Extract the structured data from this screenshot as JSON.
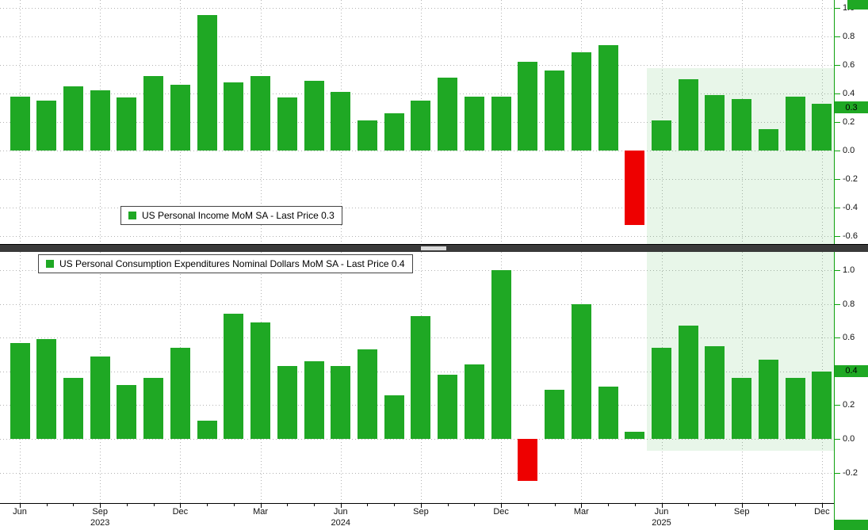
{
  "chart_data": {
    "type": "bar",
    "months": [
      "Jun-23",
      "Jul-23",
      "Aug-23",
      "Sep-23",
      "Oct-23",
      "Nov-23",
      "Dec-23",
      "Jan-24",
      "Feb-24",
      "Mar-24",
      "Apr-24",
      "May-24",
      "Jun-24",
      "Jul-24",
      "Aug-24",
      "Sep-24",
      "Oct-24",
      "Nov-24",
      "Dec-24",
      "Jan-25",
      "Feb-25",
      "Mar-25",
      "Apr-25",
      "May-25",
      "Jun-25",
      "Jul-25",
      "Aug-25",
      "Sep-25",
      "Oct-25",
      "Nov-25",
      "Dec-25"
    ],
    "x_axis": {
      "quarter_labels": [
        {
          "index": 0,
          "label": "Jun"
        },
        {
          "index": 3,
          "label": "Sep"
        },
        {
          "index": 6,
          "label": "Dec"
        },
        {
          "index": 9,
          "label": "Mar"
        },
        {
          "index": 12,
          "label": "Jun"
        },
        {
          "index": 15,
          "label": "Sep"
        },
        {
          "index": 18,
          "label": "Dec"
        },
        {
          "index": 21,
          "label": "Mar"
        },
        {
          "index": 24,
          "label": "Jun"
        },
        {
          "index": 27,
          "label": "Sep"
        },
        {
          "index": 30,
          "label": "Dec"
        }
      ],
      "year_labels": [
        {
          "index": 3,
          "label": "2023"
        },
        {
          "index": 12,
          "label": "2024"
        },
        {
          "index": 24,
          "label": "2025"
        }
      ]
    },
    "panels": [
      {
        "name": "us-personal-income-mom-sa",
        "legend_label": "US Personal Income MoM SA - Last Price 0.3",
        "last_price": "0.3",
        "ylim": [
          -0.66,
          1.06
        ],
        "yticks": [
          1.0,
          0.8,
          0.6,
          0.4,
          0.2,
          0.0,
          -0.2,
          -0.4,
          -0.6
        ],
        "grid": true,
        "legend_position": "bottom-left-area",
        "values": [
          0.38,
          0.35,
          0.45,
          0.42,
          0.37,
          0.52,
          0.46,
          0.95,
          0.48,
          0.52,
          0.37,
          0.49,
          0.41,
          0.21,
          0.26,
          0.35,
          0.51,
          0.38,
          0.38,
          0.62,
          0.56,
          0.69,
          0.74,
          -0.52,
          0.21,
          0.5,
          0.39,
          0.36,
          0.15,
          0.38,
          0.33
        ],
        "highlight": {
          "from_month": "Jun-25",
          "to_month": "Dec-25",
          "value_top": 0.58,
          "value_bottom": -0.67
        }
      },
      {
        "name": "us-pce-nominal-dollars-mom-sa",
        "legend_label": "US Personal Consumption Expenditures Nominal Dollars MoM SA - Last Price 0.4",
        "last_price": "0.4",
        "ylim": [
          -0.38,
          1.11
        ],
        "yticks": [
          1.0,
          0.8,
          0.6,
          0.4,
          0.2,
          0.0,
          -0.2
        ],
        "grid": true,
        "legend_position": "top-left",
        "values": [
          0.57,
          0.59,
          0.36,
          0.49,
          0.32,
          0.36,
          0.54,
          0.11,
          0.74,
          0.69,
          0.43,
          0.46,
          0.43,
          0.53,
          0.26,
          0.73,
          0.38,
          0.44,
          1.0,
          -0.25,
          0.29,
          0.8,
          0.31,
          0.04,
          0.54,
          0.67,
          0.55,
          0.36,
          0.47,
          0.36,
          0.4
        ],
        "highlight": {
          "from_month": "Jun-25",
          "to_month": "Dec-25",
          "value_top": 1.11,
          "value_bottom": -0.07
        }
      }
    ],
    "colors": {
      "positive": "#1fa824",
      "negative": "#ee0000",
      "highlight": "rgba(31,168,36,0.10)",
      "last_price_bg": "#1fa824",
      "axis_tick": "#0da10d",
      "gridline": "#b3b3b3"
    },
    "legend_symbol": "green-square"
  }
}
